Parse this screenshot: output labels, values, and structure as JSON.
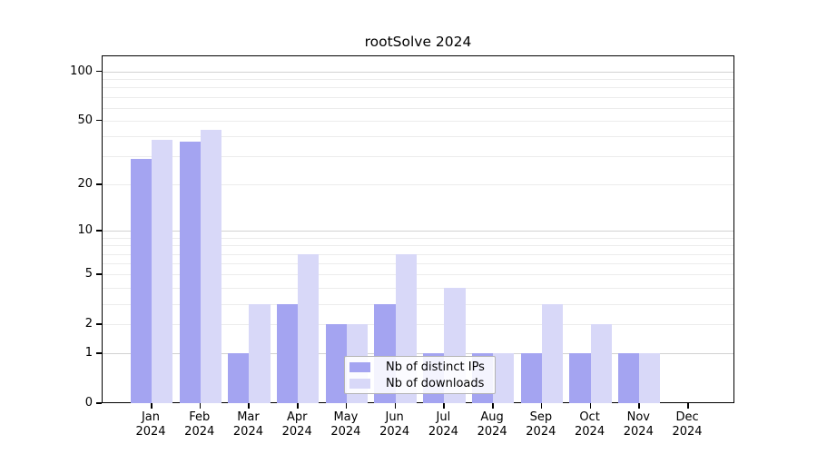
{
  "title": "rootSolve 2024",
  "chart_data": {
    "type": "bar",
    "title": "rootSolve 2024",
    "categories": [
      "Jan",
      "Feb",
      "Mar",
      "Apr",
      "May",
      "Jun",
      "Jul",
      "Aug",
      "Sep",
      "Oct",
      "Nov",
      "Dec"
    ],
    "year_label": "2024",
    "series": [
      {
        "name": "Nb of distinct IPs",
        "color": "#a4a4f1",
        "values": [
          29,
          37,
          1,
          3,
          2,
          3,
          1,
          1,
          1,
          1,
          1,
          0
        ]
      },
      {
        "name": "Nb of downloads",
        "color": "#d8d8f8",
        "values": [
          38,
          44,
          3,
          7,
          2,
          7,
          4,
          1,
          3,
          2,
          1,
          0
        ]
      }
    ],
    "xlabel": "",
    "ylabel": "",
    "y_scale": "log1p",
    "y_ticks": [
      0,
      1,
      2,
      5,
      10,
      20,
      50,
      100
    ],
    "minor_gridlines": [
      2,
      3,
      4,
      5,
      6,
      7,
      8,
      9,
      20,
      30,
      40,
      50,
      60,
      70,
      80,
      90
    ],
    "major_gridlines": [
      1,
      10,
      100
    ],
    "ylim": [
      0,
      130
    ],
    "grid": true,
    "legend_position": "bottom-center"
  },
  "colors": {
    "bar_ips": "#a4a4f1",
    "bar_downloads": "#d8d8f8",
    "gridline_major": "#d2d2d2",
    "gridline_minor": "#ececec",
    "axis": "#000000",
    "legend_border": "#b4b4b4",
    "background": "#ffffff"
  }
}
